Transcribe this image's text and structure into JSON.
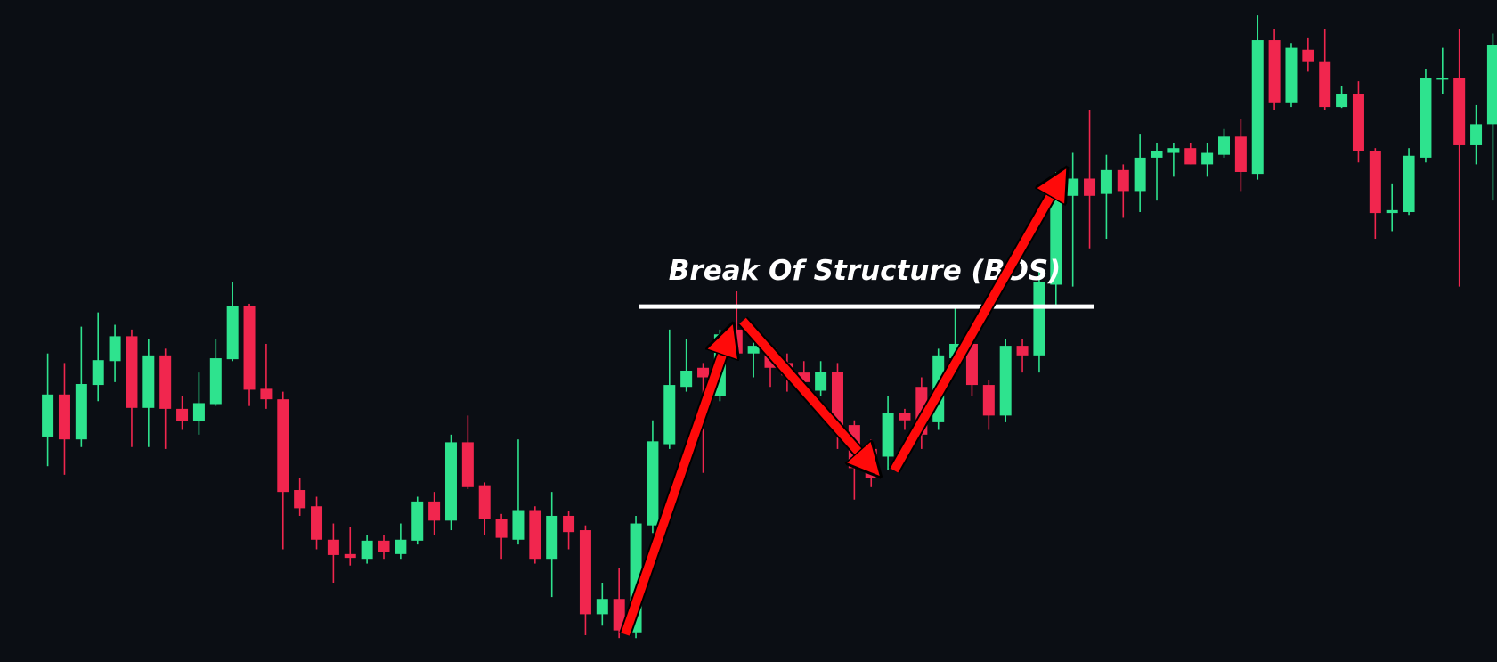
{
  "chart_data": {
    "type": "candlestick",
    "up_color": "#2ee38e",
    "down_color": "#f1264e",
    "ylim": [
      0,
      693
    ],
    "open": [
      236,
      280,
      233,
      290,
      315,
      341,
      266,
      321,
      265,
      252,
      270,
      317,
      373,
      286,
      275,
      180,
      163,
      128,
      113,
      108,
      127,
      113,
      127,
      168,
      148,
      230,
      185,
      150,
      128,
      159,
      108,
      153,
      138,
      50,
      66,
      31,
      143,
      228,
      288,
      308,
      278,
      348,
      323,
      328,
      313,
      303,
      284,
      304,
      248,
      223,
      215,
      261,
      288,
      251,
      318,
      333,
      290,
      258,
      331,
      321,
      395,
      488,
      506,
      490,
      515,
      493,
      528,
      533,
      538,
      521,
      531,
      550,
      511,
      651,
      585,
      641,
      628,
      581,
      595,
      535,
      470,
      471,
      528,
      610,
      611,
      541,
      563
    ],
    "high": [
      323,
      313,
      351,
      366,
      353,
      348,
      338,
      328,
      278,
      303,
      338,
      398,
      375,
      333,
      283,
      193,
      173,
      145,
      141,
      133,
      133,
      145,
      173,
      178,
      238,
      258,
      188,
      155,
      233,
      163,
      178,
      158,
      143,
      83,
      98,
      153,
      253,
      348,
      338,
      313,
      348,
      388,
      353,
      333,
      323,
      315,
      315,
      313,
      253,
      233,
      278,
      265,
      298,
      328,
      371,
      338,
      295,
      338,
      338,
      413,
      513,
      533,
      578,
      531,
      521,
      553,
      543,
      543,
      543,
      543,
      558,
      568,
      677,
      663,
      648,
      653,
      663,
      603,
      608,
      538,
      501,
      538,
      621,
      643,
      663,
      583,
      658
    ],
    "low": [
      205,
      196,
      225,
      273,
      293,
      225,
      225,
      223,
      243,
      238,
      268,
      315,
      268,
      265,
      118,
      153,
      118,
      83,
      101,
      103,
      108,
      108,
      123,
      133,
      138,
      181,
      133,
      108,
      123,
      103,
      68,
      118,
      28,
      38,
      25,
      25,
      135,
      223,
      283,
      198,
      273,
      321,
      298,
      288,
      283,
      283,
      278,
      223,
      170,
      183,
      201,
      243,
      223,
      243,
      313,
      278,
      243,
      251,
      303,
      303,
      373,
      393,
      433,
      443,
      465,
      471,
      483,
      508,
      521,
      508,
      528,
      493,
      505,
      578,
      581,
      618,
      578,
      580,
      523,
      443,
      451,
      468,
      523,
      595,
      393,
      521,
      483
    ],
    "close": [
      280,
      233,
      291,
      316,
      341,
      266,
      321,
      265,
      252,
      271,
      318,
      373,
      285,
      275,
      178,
      161,
      128,
      112,
      109,
      127,
      115,
      128,
      168,
      148,
      230,
      183,
      150,
      130,
      159,
      108,
      153,
      136,
      50,
      66,
      33,
      145,
      231,
      290,
      305,
      298,
      343,
      323,
      331,
      308,
      300,
      293,
      304,
      248,
      203,
      193,
      261,
      253,
      238,
      321,
      333,
      290,
      258,
      331,
      321,
      398,
      488,
      506,
      488,
      515,
      493,
      528,
      535,
      538,
      521,
      533,
      550,
      513,
      651,
      585,
      643,
      628,
      581,
      595,
      535,
      470,
      473,
      530,
      611,
      611,
      541,
      563,
      646
    ],
    "annotations": [
      {
        "text": "Break Of Structure (BOS)",
        "level": 372
      }
    ]
  }
}
